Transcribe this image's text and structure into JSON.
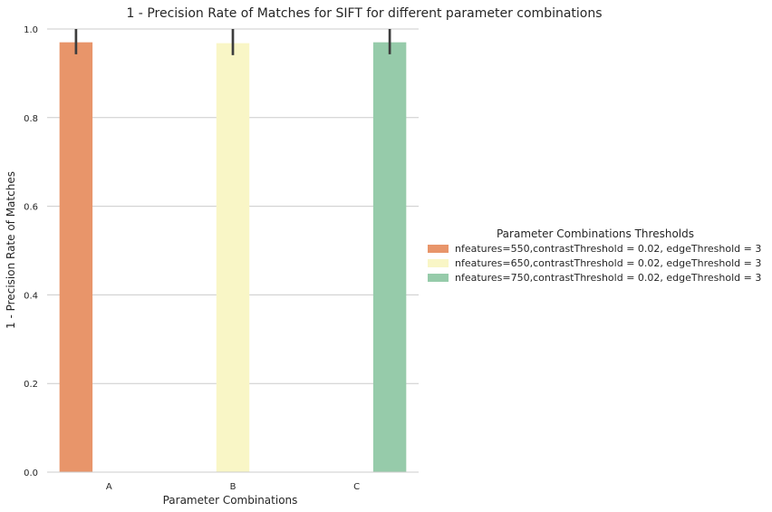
{
  "chart_data": {
    "type": "bar",
    "title": "1 - Precision Rate of Matches for SIFT for different parameter combinations",
    "xlabel": "Parameter Combinations",
    "ylabel": "1 - Precision Rate of Matches",
    "categories": [
      "A",
      "B",
      "C"
    ],
    "ylim": [
      0,
      1.0
    ],
    "yticks": [
      "0.0",
      "0.2",
      "0.4",
      "0.6",
      "0.8",
      "1.0"
    ],
    "grid": true,
    "legend": {
      "title": "Parameter Combinations Thresholds",
      "placement": "right"
    },
    "series": [
      {
        "name": "nfeatures=550,contrastThreshold = 0.02, edgeThreshold = 3",
        "color": "#e8956a",
        "values": [
          0.97,
          null,
          null
        ],
        "error": [
          [
            0.943,
            1.0
          ],
          null,
          null
        ]
      },
      {
        "name": "nfeatures=650,contrastThreshold = 0.02, edgeThreshold = 3",
        "color": "#f9f6c6",
        "values": [
          null,
          0.968,
          null
        ],
        "error": [
          null,
          [
            0.941,
            1.0
          ],
          null
        ]
      },
      {
        "name": "nfeatures=750,contrastThreshold = 0.02, edgeThreshold = 3",
        "color": "#96cbaa",
        "values": [
          null,
          null,
          0.97
        ],
        "error": [
          null,
          null,
          [
            0.943,
            1.0
          ]
        ]
      }
    ]
  }
}
